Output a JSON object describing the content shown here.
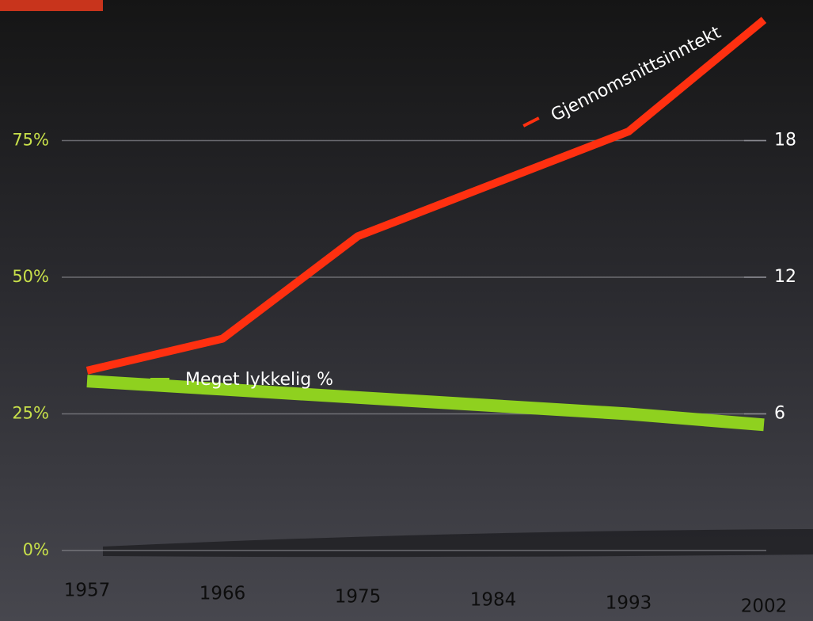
{
  "chart_data": {
    "type": "line",
    "categories": [
      "1957",
      "1966",
      "1975",
      "1984",
      "1993",
      "2002"
    ],
    "series": [
      {
        "name": "Meget lykkelig %",
        "color": "#8fd11f",
        "values": [
          31,
          29.5,
          28,
          26.5,
          25,
          23
        ]
      },
      {
        "name": "Gjennomsnittsinntekt",
        "color": "#ff3010",
        "axis": "y2",
        "values": [
          7.9,
          9.3,
          13.8,
          16.1,
          18.4,
          23.3
        ]
      }
    ],
    "ylim": [
      0,
      100
    ],
    "yticks": [
      {
        "value": 0,
        "label": "0%"
      },
      {
        "value": 25,
        "label": "25%"
      },
      {
        "value": 50,
        "label": "50%"
      },
      {
        "value": 75,
        "label": "75%"
      }
    ],
    "y2lim": [
      0,
      24
    ],
    "y2ticks": [
      6,
      12,
      18
    ],
    "grid": true
  }
}
